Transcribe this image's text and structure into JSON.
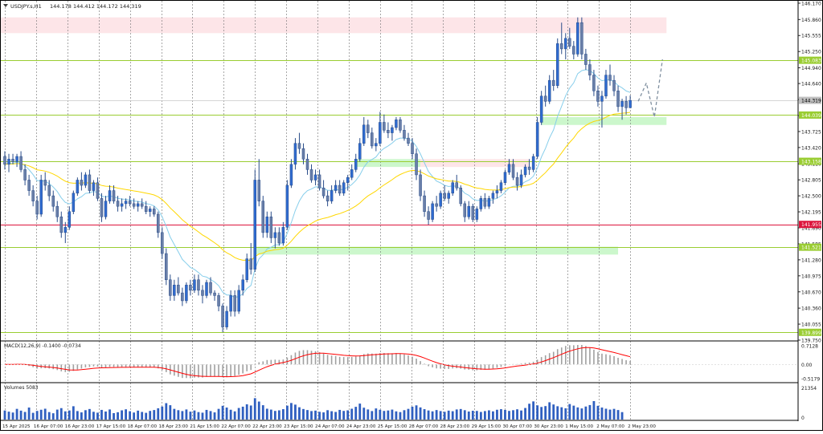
{
  "chart_data": {
    "type": "candlestick",
    "instrument_label": "USDJPY.s,H1",
    "ohlc_label": "144.178 144.412 144.172 144.319",
    "last_price_label": "144.319",
    "price_range": [
      139.75,
      146.17
    ],
    "price_ticks": [
      "146.170",
      "145.860",
      "145.555",
      "145.250",
      "144.940",
      "144.640",
      "144.335",
      "144.029",
      "143.725",
      "143.420",
      "143.110",
      "142.805",
      "142.500",
      "142.195",
      "141.890",
      "141.585",
      "141.280",
      "140.975",
      "140.670",
      "140.360",
      "140.055",
      "139.750"
    ],
    "x_labels": [
      "15 Apr 2025",
      "16 Apr 07:00",
      "16 Apr 23:00",
      "17 Apr 15:00",
      "18 Apr 07:00",
      "18 Apr 23:00",
      "21 Apr 15:00",
      "22 Apr 07:00",
      "22 Apr 23:00",
      "23 Apr 15:00",
      "24 Apr 07:00",
      "24 Apr 23:00",
      "25 Apr 15:00",
      "28 Apr 07:00",
      "28 Apr 23:00",
      "29 Apr 15:00",
      "30 Apr 07:00",
      "30 Apr 23:00",
      "1 May 15:00",
      "2 May 07:00",
      "2 May 23:00"
    ],
    "levels": [
      {
        "label": "145.083",
        "price": 145.083,
        "color": "#9acd32"
      },
      {
        "label": "144.039",
        "price": 144.039,
        "color": "#9acd32"
      },
      {
        "label": "143.158",
        "price": 143.158,
        "color": "#9acd32"
      },
      {
        "label": "141.955",
        "price": 141.955,
        "color": "#dc143c"
      },
      {
        "label": "141.521",
        "price": 141.521,
        "color": "#9acd32"
      },
      {
        "label": "139.899",
        "price": 139.899,
        "color": "#9acd32"
      }
    ],
    "zones": [
      {
        "kind": "supply",
        "from": 145.6,
        "to": 145.9,
        "start_index": 0,
        "end_index": 164,
        "color": "#fde5e8"
      },
      {
        "kind": "supply",
        "from": 143.05,
        "to": 143.2,
        "start_index": 103,
        "end_index": 130,
        "color": "#fde5e8"
      },
      {
        "kind": "demand",
        "from": 143.85,
        "to": 144.0,
        "start_index": 133,
        "end_index": 164,
        "color": "#ccf7cc"
      },
      {
        "kind": "demand",
        "from": 143.05,
        "to": 143.2,
        "start_index": 87,
        "end_index": 103,
        "color": "#ccf7cc"
      },
      {
        "kind": "demand",
        "from": 141.38,
        "to": 141.53,
        "start_index": 62,
        "end_index": 152,
        "color": "#ccf7cc"
      }
    ],
    "candles": [
      [
        143.25,
        143.35,
        143.0,
        143.1
      ],
      [
        143.1,
        143.3,
        142.95,
        143.2
      ],
      [
        143.2,
        143.3,
        143.1,
        143.15
      ],
      [
        143.15,
        143.3,
        143.05,
        143.25
      ],
      [
        143.25,
        143.35,
        142.95,
        143.0
      ],
      [
        143.0,
        143.1,
        142.7,
        142.8
      ],
      [
        142.8,
        142.9,
        142.5,
        142.6
      ],
      [
        142.6,
        142.7,
        142.3,
        142.4
      ],
      [
        142.4,
        142.5,
        142.05,
        142.15
      ],
      [
        142.15,
        142.9,
        142.1,
        142.8
      ],
      [
        142.8,
        142.95,
        142.6,
        142.7
      ],
      [
        142.7,
        142.8,
        142.4,
        142.5
      ],
      [
        142.5,
        142.6,
        142.2,
        142.3
      ],
      [
        142.3,
        142.4,
        142.0,
        142.1
      ],
      [
        142.1,
        142.2,
        141.7,
        141.8
      ],
      [
        141.8,
        142.0,
        141.6,
        141.9
      ],
      [
        141.9,
        142.3,
        141.85,
        142.2
      ],
      [
        142.2,
        142.6,
        142.15,
        142.55
      ],
      [
        142.55,
        142.85,
        142.5,
        142.8
      ],
      [
        142.8,
        142.95,
        142.6,
        142.7
      ],
      [
        142.7,
        142.95,
        142.65,
        142.9
      ],
      [
        142.9,
        143.0,
        142.55,
        142.6
      ],
      [
        142.6,
        142.8,
        142.5,
        142.75
      ],
      [
        142.75,
        142.85,
        142.4,
        142.45
      ],
      [
        142.45,
        142.55,
        142.0,
        142.1
      ],
      [
        142.1,
        142.5,
        142.05,
        142.4
      ],
      [
        142.4,
        142.7,
        142.35,
        142.6
      ],
      [
        142.6,
        142.7,
        142.35,
        142.4
      ],
      [
        142.4,
        142.5,
        142.2,
        142.3
      ],
      [
        142.3,
        142.45,
        142.2,
        142.35
      ],
      [
        142.35,
        142.45,
        142.25,
        142.4
      ],
      [
        142.4,
        142.5,
        142.3,
        142.35
      ],
      [
        142.35,
        142.45,
        142.25,
        142.3
      ],
      [
        142.3,
        142.4,
        142.2,
        142.35
      ],
      [
        142.35,
        142.45,
        142.25,
        142.3
      ],
      [
        142.3,
        142.4,
        142.15,
        142.2
      ],
      [
        142.2,
        142.3,
        142.1,
        142.25
      ],
      [
        142.25,
        142.3,
        142.1,
        142.15
      ],
      [
        142.15,
        142.2,
        141.7,
        141.8
      ],
      [
        141.8,
        141.9,
        141.3,
        141.4
      ],
      [
        141.4,
        141.5,
        140.8,
        140.9
      ],
      [
        140.9,
        141.0,
        140.5,
        140.6
      ],
      [
        140.6,
        140.9,
        140.5,
        140.8
      ],
      [
        140.8,
        140.95,
        140.6,
        140.65
      ],
      [
        140.65,
        140.75,
        140.4,
        140.5
      ],
      [
        140.5,
        140.85,
        140.45,
        140.8
      ],
      [
        140.8,
        140.9,
        140.6,
        140.7
      ],
      [
        140.7,
        141.0,
        140.65,
        140.9
      ],
      [
        140.9,
        141.0,
        140.6,
        140.7
      ],
      [
        140.7,
        140.8,
        140.45,
        140.6
      ],
      [
        140.6,
        140.9,
        140.55,
        140.85
      ],
      [
        140.85,
        140.95,
        140.6,
        140.65
      ],
      [
        140.65,
        140.7,
        140.5,
        140.6
      ],
      [
        140.6,
        140.65,
        140.3,
        140.4
      ],
      [
        140.4,
        140.45,
        139.9,
        140.0
      ],
      [
        140.0,
        140.4,
        139.95,
        140.3
      ],
      [
        140.3,
        140.7,
        140.2,
        140.6
      ],
      [
        140.6,
        140.7,
        140.2,
        140.3
      ],
      [
        140.3,
        140.8,
        140.25,
        140.7
      ],
      [
        140.7,
        141.0,
        140.6,
        140.9
      ],
      [
        140.9,
        141.4,
        140.85,
        141.3
      ],
      [
        141.3,
        141.6,
        141.0,
        141.1
      ],
      [
        141.1,
        143.0,
        141.05,
        142.8
      ],
      [
        142.8,
        143.2,
        142.3,
        142.4
      ],
      [
        142.4,
        142.5,
        141.7,
        141.8
      ],
      [
        141.8,
        142.2,
        141.7,
        142.1
      ],
      [
        142.1,
        142.2,
        141.6,
        141.7
      ],
      [
        141.7,
        141.9,
        141.5,
        141.8
      ],
      [
        141.8,
        141.9,
        141.55,
        141.6
      ],
      [
        141.6,
        142.0,
        141.55,
        141.9
      ],
      [
        141.9,
        142.8,
        141.85,
        142.7
      ],
      [
        142.7,
        143.2,
        142.65,
        143.1
      ],
      [
        143.1,
        143.6,
        143.0,
        143.5
      ],
      [
        143.5,
        143.7,
        143.3,
        143.4
      ],
      [
        143.4,
        143.5,
        143.1,
        143.2
      ],
      [
        143.2,
        143.3,
        142.9,
        143.0
      ],
      [
        143.0,
        143.1,
        142.75,
        142.8
      ],
      [
        142.8,
        143.0,
        142.7,
        142.9
      ],
      [
        142.9,
        143.0,
        142.6,
        142.65
      ],
      [
        142.65,
        142.8,
        142.45,
        142.5
      ],
      [
        142.5,
        142.6,
        142.3,
        142.4
      ],
      [
        142.4,
        142.7,
        142.35,
        142.6
      ],
      [
        142.6,
        142.8,
        142.55,
        142.7
      ],
      [
        142.7,
        142.8,
        142.5,
        142.55
      ],
      [
        142.55,
        142.8,
        142.5,
        142.75
      ],
      [
        142.75,
        142.9,
        142.6,
        142.85
      ],
      [
        142.85,
        143.1,
        142.8,
        143.0
      ],
      [
        143.0,
        143.3,
        142.95,
        143.2
      ],
      [
        143.2,
        143.6,
        143.15,
        143.5
      ],
      [
        143.5,
        144.0,
        143.45,
        143.85
      ],
      [
        143.85,
        143.95,
        143.6,
        143.7
      ],
      [
        143.7,
        143.8,
        143.4,
        143.45
      ],
      [
        143.45,
        143.6,
        143.35,
        143.5
      ],
      [
        143.5,
        144.1,
        143.45,
        143.9
      ],
      [
        143.9,
        144.05,
        143.7,
        143.75
      ],
      [
        143.75,
        143.9,
        143.6,
        143.7
      ],
      [
        143.7,
        143.85,
        143.55,
        143.8
      ],
      [
        143.8,
        144.0,
        143.75,
        143.95
      ],
      [
        143.95,
        144.0,
        143.7,
        143.75
      ],
      [
        143.75,
        143.85,
        143.55,
        143.6
      ],
      [
        143.6,
        143.7,
        143.45,
        143.5
      ],
      [
        143.5,
        143.6,
        143.2,
        143.3
      ],
      [
        143.3,
        143.4,
        142.8,
        142.9
      ],
      [
        142.9,
        143.0,
        142.4,
        142.5
      ],
      [
        142.5,
        142.6,
        142.1,
        142.2
      ],
      [
        142.2,
        142.3,
        141.95,
        142.05
      ],
      [
        142.05,
        142.4,
        142.0,
        142.35
      ],
      [
        142.35,
        142.5,
        142.2,
        142.3
      ],
      [
        142.3,
        142.6,
        142.25,
        142.55
      ],
      [
        142.55,
        142.7,
        142.4,
        142.45
      ],
      [
        142.45,
        142.6,
        142.35,
        142.55
      ],
      [
        142.55,
        142.8,
        142.5,
        142.75
      ],
      [
        142.75,
        142.9,
        142.6,
        142.65
      ],
      [
        142.65,
        142.7,
        142.3,
        142.35
      ],
      [
        142.35,
        142.4,
        142.0,
        142.1
      ],
      [
        142.1,
        142.4,
        142.05,
        142.3
      ],
      [
        142.3,
        142.35,
        142.0,
        142.05
      ],
      [
        142.05,
        142.3,
        142.0,
        142.25
      ],
      [
        142.25,
        142.5,
        142.2,
        142.45
      ],
      [
        142.45,
        142.55,
        142.25,
        142.3
      ],
      [
        142.3,
        142.5,
        142.25,
        142.45
      ],
      [
        142.45,
        142.6,
        142.35,
        142.55
      ],
      [
        142.55,
        142.7,
        142.45,
        142.6
      ],
      [
        142.6,
        142.8,
        142.55,
        142.75
      ],
      [
        142.75,
        143.0,
        142.7,
        142.95
      ],
      [
        142.95,
        143.2,
        142.9,
        143.1
      ],
      [
        143.1,
        143.2,
        142.8,
        142.85
      ],
      [
        142.85,
        142.95,
        142.6,
        142.7
      ],
      [
        142.7,
        143.0,
        142.65,
        142.9
      ],
      [
        142.9,
        143.1,
        142.85,
        143.05
      ],
      [
        143.05,
        143.2,
        142.9,
        143.0
      ],
      [
        143.0,
        143.3,
        142.95,
        143.25
      ],
      [
        143.25,
        144.0,
        143.2,
        143.9
      ],
      [
        143.9,
        144.5,
        143.85,
        144.4
      ],
      [
        144.4,
        144.6,
        144.2,
        144.3
      ],
      [
        144.3,
        144.8,
        144.25,
        144.7
      ],
      [
        144.7,
        144.9,
        144.5,
        144.6
      ],
      [
        144.6,
        145.5,
        144.55,
        145.4
      ],
      [
        145.4,
        145.8,
        145.2,
        145.3
      ],
      [
        145.3,
        145.6,
        145.1,
        145.5
      ],
      [
        145.5,
        145.7,
        145.3,
        145.35
      ],
      [
        145.35,
        145.45,
        145.1,
        145.2
      ],
      [
        145.2,
        145.9,
        145.15,
        145.8
      ],
      [
        145.8,
        145.9,
        145.1,
        145.2
      ],
      [
        145.2,
        145.3,
        144.9,
        145.0
      ],
      [
        145.0,
        145.1,
        144.7,
        144.8
      ],
      [
        144.8,
        144.9,
        144.4,
        144.5
      ],
      [
        144.5,
        144.6,
        144.2,
        144.3
      ],
      [
        144.3,
        144.5,
        143.8,
        144.4
      ],
      [
        144.4,
        144.9,
        144.35,
        144.8
      ],
      [
        144.8,
        145.0,
        144.6,
        144.7
      ],
      [
        144.7,
        144.8,
        144.4,
        144.5
      ],
      [
        144.5,
        144.6,
        144.1,
        144.2
      ],
      [
        144.2,
        144.35,
        143.95,
        144.3
      ],
      [
        144.3,
        144.4,
        144.05,
        144.178
      ],
      [
        144.178,
        144.412,
        144.172,
        144.319
      ]
    ],
    "moving_averages": [
      {
        "name": "MA fast",
        "color": "#87ceeb",
        "period": 12
      },
      {
        "name": "MA slow",
        "color": "#ffd700",
        "period": 40
      }
    ],
    "projection": {
      "color": "#8090a0",
      "path": [
        [
          157,
          144.3
        ],
        [
          159,
          144.65
        ],
        [
          161,
          144.0
        ],
        [
          163,
          145.1
        ]
      ]
    },
    "macd": {
      "label": "MACD(12,26,9) -0.1400 -0.0734",
      "ticks": [
        "0.7128",
        "0.00",
        "-0.5179"
      ],
      "range": [
        -0.5179,
        0.7128
      ],
      "signal_color": "#ff0000",
      "hist_color": "#a0a0a0"
    },
    "volume": {
      "label": "Volumes 5083",
      "ticks": [
        "21354",
        "0"
      ],
      "max": 21354,
      "values": [
        6200,
        5400,
        4800,
        7300,
        6100,
        5200,
        8200,
        4600,
        5900,
        6700,
        7400,
        5100,
        4300,
        6800,
        7800,
        5600,
        6200,
        9100,
        5800,
        4900,
        6400,
        7200,
        5300,
        4700,
        6600,
        5500,
        6900,
        4400,
        5000,
        6300,
        7000,
        5700,
        4800,
        6100,
        5200,
        4600,
        5900,
        6500,
        7700,
        8900,
        11200,
        9800,
        7300,
        6400,
        5800,
        6900,
        5400,
        6200,
        5100,
        4700,
        6600,
        5800,
        4900,
        7300,
        9400,
        8200,
        6700,
        5600,
        7900,
        8800,
        10400,
        9600,
        14600,
        12300,
        9800,
        7400,
        6800,
        5900,
        6300,
        7100,
        9500,
        11300,
        10200,
        8400,
        7200,
        6500,
        5800,
        6100,
        5300,
        4900,
        6400,
        5700,
        5200,
        6600,
        5900,
        6300,
        7400,
        8700,
        10900,
        8100,
        6900,
        5800,
        7600,
        6700,
        5900,
        6200,
        6800,
        5600,
        5100,
        6400,
        7300,
        8800,
        9700,
        8300,
        7100,
        6200,
        5600,
        6500,
        5800,
        5300,
        6100,
        5700,
        6900,
        7200,
        6400,
        5500,
        6000,
        5900,
        5200,
        5800,
        6300,
        5600,
        6700,
        7100,
        6600,
        5900,
        6400,
        7000,
        6200,
        7900,
        10800,
        12400,
        9700,
        8600,
        9200,
        11800,
        10300,
        9100,
        8400,
        7700,
        10600,
        9500,
        8300,
        7600,
        8900,
        9900,
        12600,
        9400,
        8200,
        7400,
        6800,
        7300,
        6500,
        5083
      ]
    }
  }
}
